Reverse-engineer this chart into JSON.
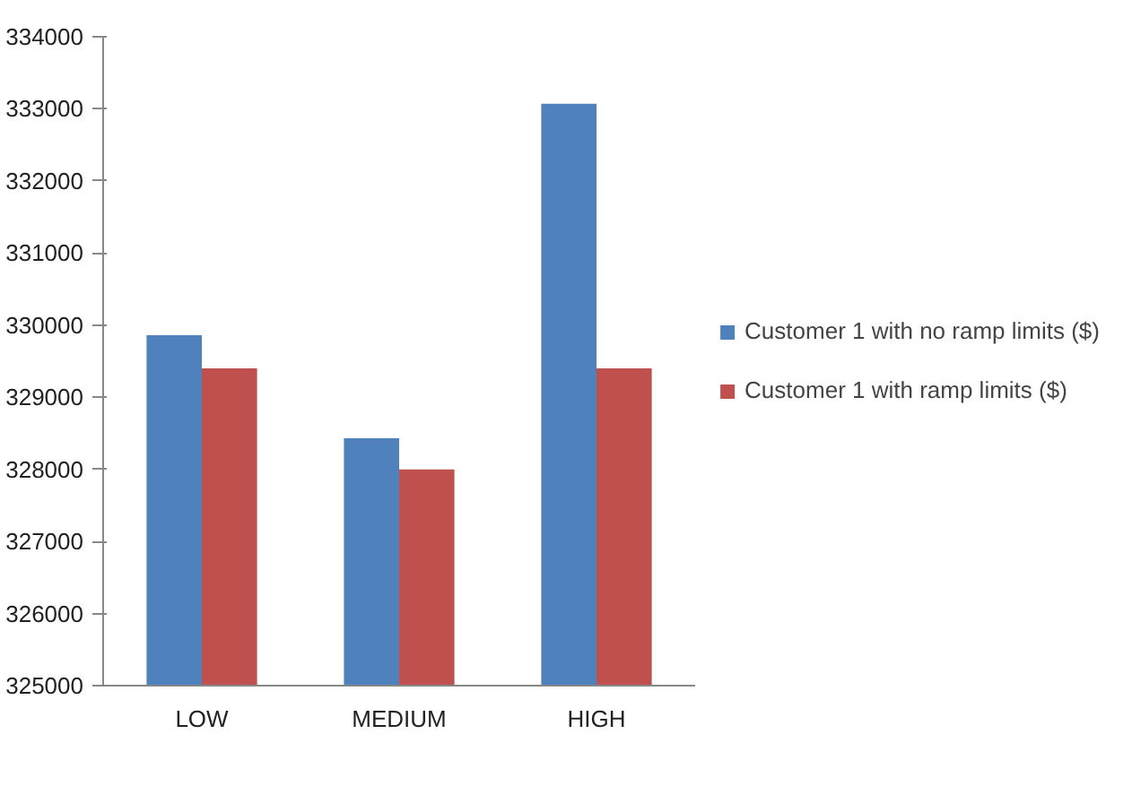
{
  "chart_data": {
    "type": "bar",
    "categories": [
      "LOW",
      "MEDIUM",
      "HIGH"
    ],
    "series": [
      {
        "name": "Customer 1 with no ramp limits ($)",
        "color": "#4f81bd",
        "values": [
          329860,
          328430,
          333070
        ]
      },
      {
        "name": "Customer 1 with ramp limits ($)",
        "color": "#c0504d",
        "values": [
          329400,
          328000,
          329400
        ]
      }
    ],
    "ylim": [
      325000,
      334000
    ],
    "yticks": [
      325000,
      326000,
      327000,
      328000,
      329000,
      330000,
      331000,
      332000,
      333000,
      334000
    ],
    "grid": false,
    "legend": "right"
  }
}
